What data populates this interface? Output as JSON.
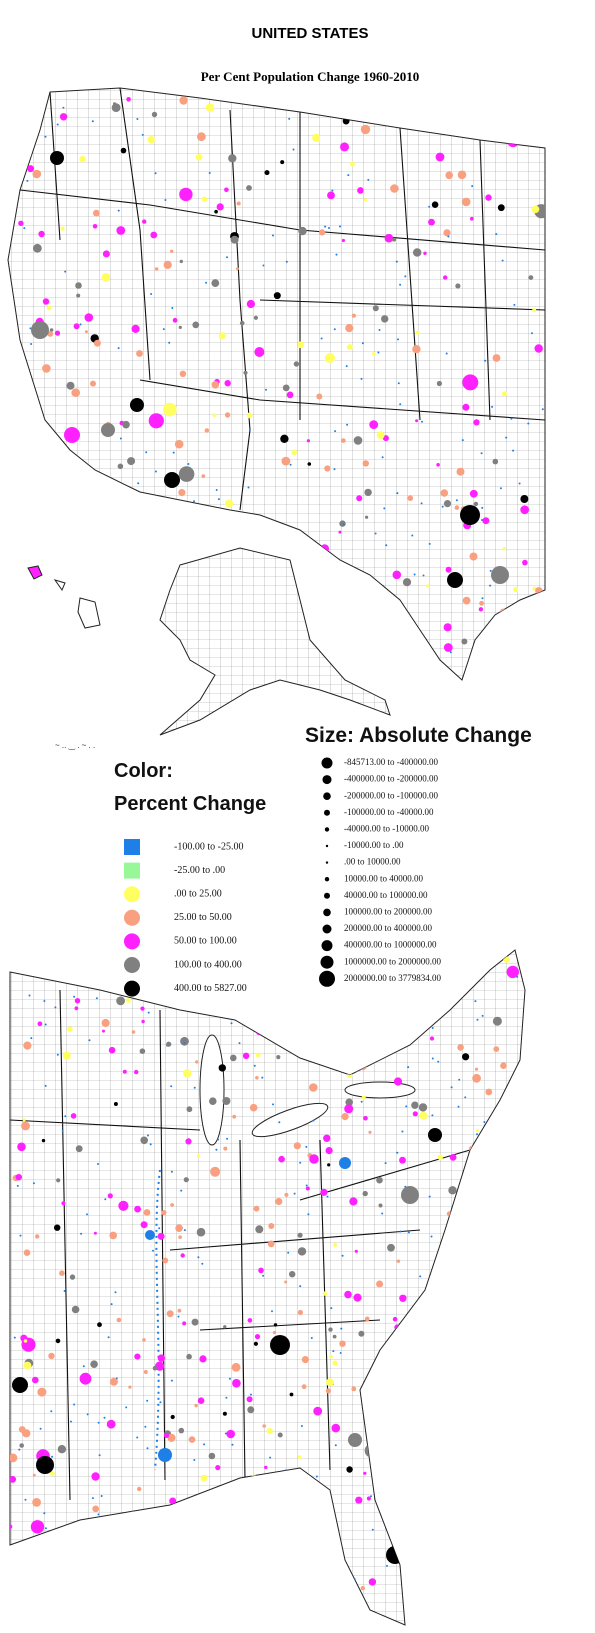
{
  "header": {
    "title": "UNITED STATES",
    "subtitle": "Per Cent Population Change 1960-2010"
  },
  "color_legend": {
    "title_lines": [
      "Color:",
      "Percent Change"
    ],
    "items": [
      {
        "label": "-100.00 to -25.00",
        "color": "#1e7fe6"
      },
      {
        "label": "-25.00 to .00",
        "color": "#98f898"
      },
      {
        "label": ".00 to 25.00",
        "color": "#ffff60"
      },
      {
        "label": "25.00 to 50.00",
        "color": "#f8a080"
      },
      {
        "label": "50.00 to 100.00",
        "color": "#ff20ff"
      },
      {
        "label": "100.00 to 400.00",
        "color": "#808080"
      },
      {
        "label": "400.00 to 5827.00",
        "color": "#000000"
      }
    ]
  },
  "size_legend": {
    "title": "Size: Absolute Change",
    "items": [
      "-845713.00 to -400000.00",
      "-400000.00 to -200000.00",
      "-200000.00 to -100000.00",
      "-100000.00 to -40000.00",
      "-40000.00 to -10000.00",
      "-10000.00 to .00",
      ".00 to 10000.00",
      "10000.00 to 40000.00",
      "40000.00 to 100000.00",
      "100000.00 to 200000.00",
      "200000.00 to 400000.00",
      "400000.00 to 1000000.00",
      "1000000.00 to 2000000.00",
      "2000000.00 to 3779834.00"
    ]
  }
}
